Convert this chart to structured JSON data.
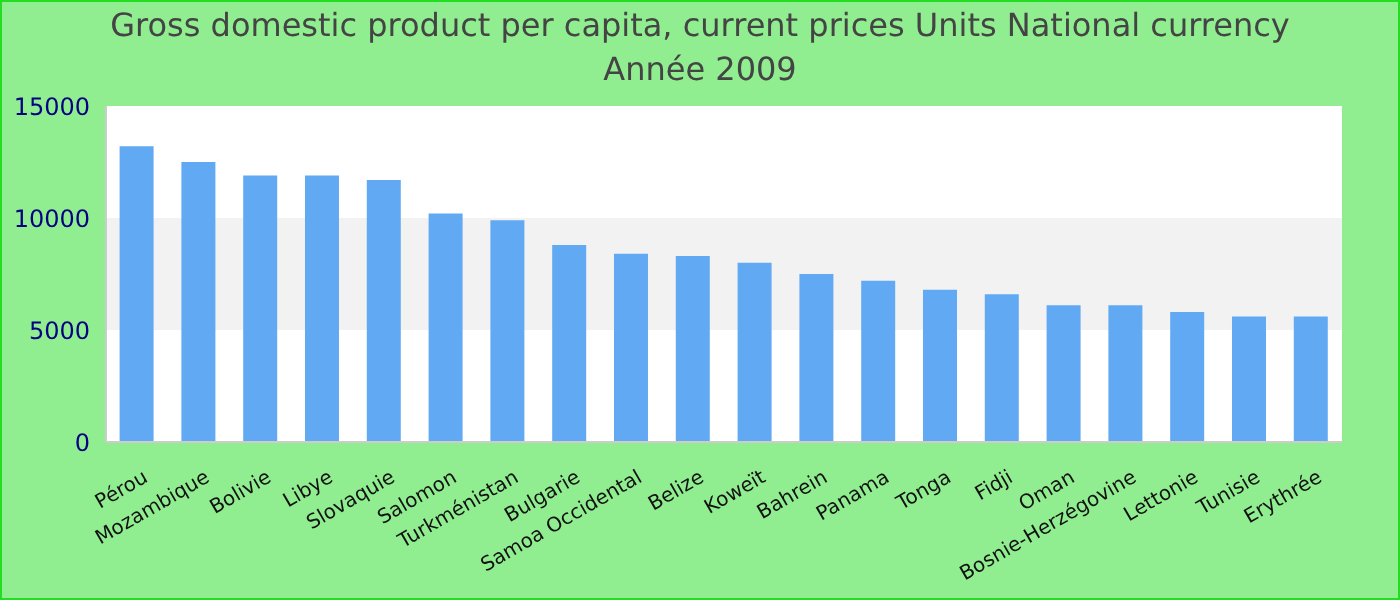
{
  "chart_data": {
    "type": "bar",
    "title": "Gross domestic product per capita, current prices Units National currency",
    "subtitle": "Année 2009",
    "categories": [
      "Pérou",
      "Mozambique",
      "Bolivie",
      "Libye",
      "Slovaquie",
      "Salomon",
      "Turkménistan",
      "Bulgarie",
      "Samoa Occidental",
      "Belize",
      "Koweït",
      "Bahrein",
      "Panama",
      "Tonga",
      "Fidji",
      "Oman",
      "Bosnie-Herzégovine",
      "Lettonie",
      "Tunisie",
      "Erythrée"
    ],
    "values": [
      13200,
      12500,
      11900,
      11900,
      11700,
      10200,
      9900,
      8800,
      8400,
      8300,
      8000,
      7500,
      7200,
      6800,
      6600,
      6100,
      6100,
      5800,
      5600,
      5600
    ],
    "color": "#62a9f4",
    "ylim": [
      0,
      15000
    ],
    "yticks": [
      0,
      5000,
      10000,
      15000
    ],
    "bands": [
      {
        "axis": "y",
        "from": 5000,
        "to": 10000,
        "color": "#f2f2f2"
      }
    ]
  }
}
